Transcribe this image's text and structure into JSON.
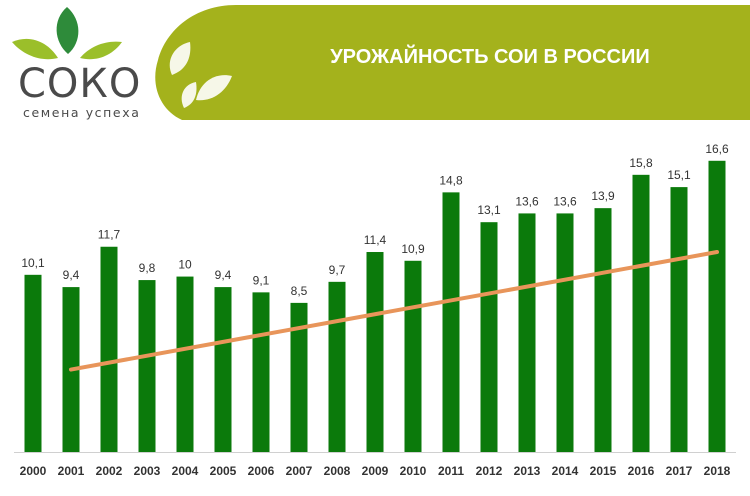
{
  "header": {
    "logo_name": "СОКО",
    "logo_tagline": "семена успеха",
    "title": "УРОЖАЙНОСТЬ СОИ В РОССИИ"
  },
  "colors": {
    "bar": "#0b7a0b",
    "trend": "#e8955a",
    "banner": "#a4b21c",
    "logo_dark_green": "#2e8b3a",
    "logo_light_green": "#9bbf2a",
    "text": "#333333"
  },
  "chart_data": {
    "type": "bar",
    "title": "УРОЖАЙНОСТЬ СОИ В РОССИИ",
    "categories": [
      "2000",
      "2001",
      "2002",
      "2003",
      "2004",
      "2005",
      "2006",
      "2007",
      "2008",
      "2009",
      "2010",
      "2011",
      "2012",
      "2013",
      "2014",
      "2015",
      "2016",
      "2017",
      "2018"
    ],
    "values": [
      10.1,
      9.4,
      11.7,
      9.8,
      10,
      9.4,
      9.1,
      8.5,
      9.7,
      11.4,
      10.9,
      14.8,
      13.1,
      13.6,
      13.6,
      13.9,
      15.8,
      15.1,
      16.6
    ],
    "value_labels": [
      "10,1",
      "9,4",
      "11,7",
      "9,8",
      "10",
      "9,4",
      "9,1",
      "8,5",
      "9,7",
      "11,4",
      "10,9",
      "14,8",
      "13,1",
      "13,6",
      "13,6",
      "13,9",
      "15,8",
      "15,1",
      "16,6"
    ],
    "trendline": {
      "type": "linear",
      "from_category": "2001",
      "to_category": "2018",
      "start_value": 4.7,
      "end_value": 11.4
    },
    "ylim": [
      0,
      17.5
    ],
    "xlabel": "",
    "ylabel": "",
    "grid": false,
    "legend": "none"
  }
}
